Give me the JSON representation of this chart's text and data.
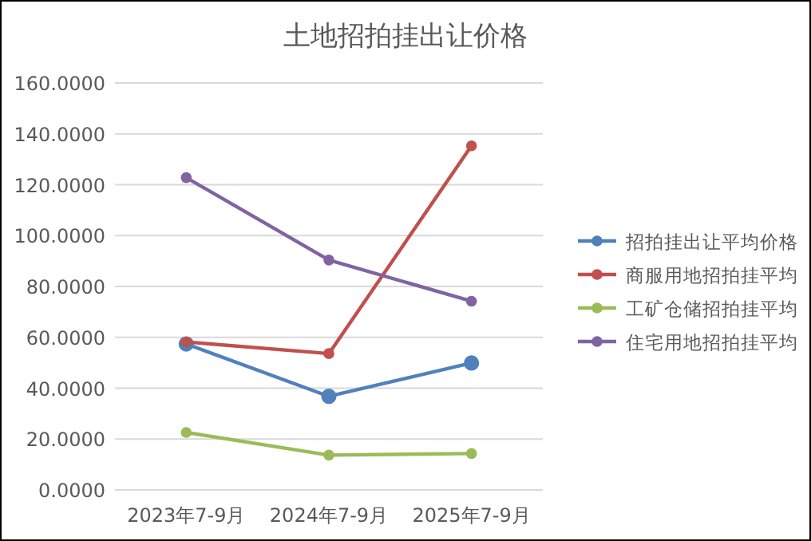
{
  "chart_data": {
    "type": "line",
    "title": "土地招拍挂出让价格",
    "categories": [
      "2023年7-9月",
      "2024年7-9月",
      "2025年7-9月"
    ],
    "series": [
      {
        "name": "招拍挂出让平均价格",
        "color": "#4f81bd",
        "values": [
          57.4,
          36.8,
          49.9
        ]
      },
      {
        "name": "商服用地招拍挂平均",
        "color": "#c0504d",
        "values": [
          58.2,
          53.6,
          135.3
        ]
      },
      {
        "name": "工矿仓储招拍挂平均",
        "color": "#9bbb59",
        "values": [
          22.6,
          13.7,
          14.3
        ]
      },
      {
        "name": "住宅用地招拍挂平均",
        "color": "#8064a2",
        "values": [
          122.8,
          90.4,
          74.2
        ]
      }
    ],
    "ylim": [
      0,
      160
    ],
    "yticks": [
      {
        "value": 0,
        "label": "0.0000"
      },
      {
        "value": 20,
        "label": "20.0000"
      },
      {
        "value": 40,
        "label": "40.0000"
      },
      {
        "value": 60,
        "label": "60.0000"
      },
      {
        "value": 80,
        "label": "80.0000"
      },
      {
        "value": 100,
        "label": "100.0000"
      },
      {
        "value": 120,
        "label": "120.0000"
      },
      {
        "value": 140,
        "label": "140.0000"
      },
      {
        "value": 160,
        "label": "160.0000"
      }
    ],
    "grid": "y",
    "legend": "right",
    "marker": "circle",
    "line_style": "solid"
  }
}
